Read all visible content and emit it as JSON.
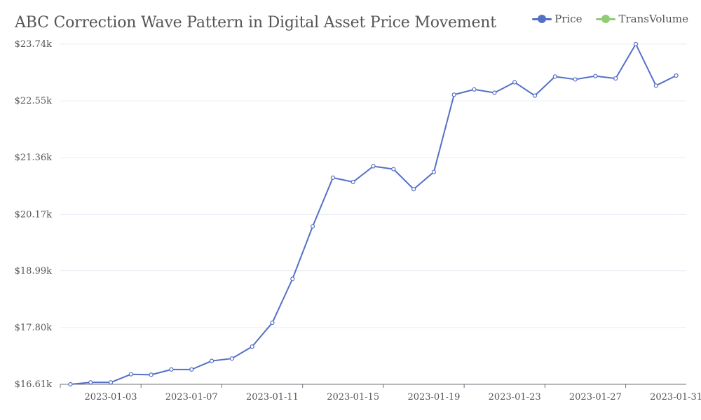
{
  "chart_data": {
    "type": "line",
    "title": "ABC Correction Wave Pattern in Digital Asset Price Movement",
    "legend_position": "top-right",
    "grid": true,
    "series": [
      {
        "name": "Price",
        "color": "#5470c6",
        "x": [
          "2023-01-01",
          "2023-01-02",
          "2023-01-03",
          "2023-01-04",
          "2023-01-05",
          "2023-01-06",
          "2023-01-07",
          "2023-01-08",
          "2023-01-09",
          "2023-01-10",
          "2023-01-11",
          "2023-01-12",
          "2023-01-13",
          "2023-01-14",
          "2023-01-15",
          "2023-01-16",
          "2023-01-17",
          "2023-01-18",
          "2023-01-19",
          "2023-01-20",
          "2023-01-21",
          "2023-01-22",
          "2023-01-23",
          "2023-01-24",
          "2023-01-25",
          "2023-01-26",
          "2023-01-27",
          "2023-01-28",
          "2023-01-29",
          "2023-01-30",
          "2023-01-31"
        ],
        "values": [
          16610,
          16650,
          16650,
          16820,
          16810,
          16920,
          16920,
          17100,
          17150,
          17400,
          17900,
          18820,
          19920,
          20940,
          20850,
          21180,
          21120,
          20700,
          21060,
          22680,
          22790,
          22720,
          22940,
          22660,
          23060,
          23000,
          23070,
          23020,
          23740,
          22870,
          23080
        ]
      },
      {
        "name": "TransVolume",
        "color": "#91cc75",
        "x": [],
        "values": []
      }
    ],
    "y_axis": {
      "min": 16610,
      "max": 23740,
      "tick_values": [
        16610,
        17800,
        18990,
        20170,
        21360,
        22550,
        23740
      ],
      "tick_labels": [
        "$16.61k",
        "$17.80k",
        "$18.99k",
        "$20.17k",
        "$21.36k",
        "$22.55k",
        "$23.74k"
      ]
    },
    "x_axis": {
      "tick_labels": [
        "2023-01-03",
        "2023-01-07",
        "2023-01-11",
        "2023-01-15",
        "2023-01-19",
        "2023-01-23",
        "2023-01-27",
        "2023-01-31"
      ]
    }
  }
}
